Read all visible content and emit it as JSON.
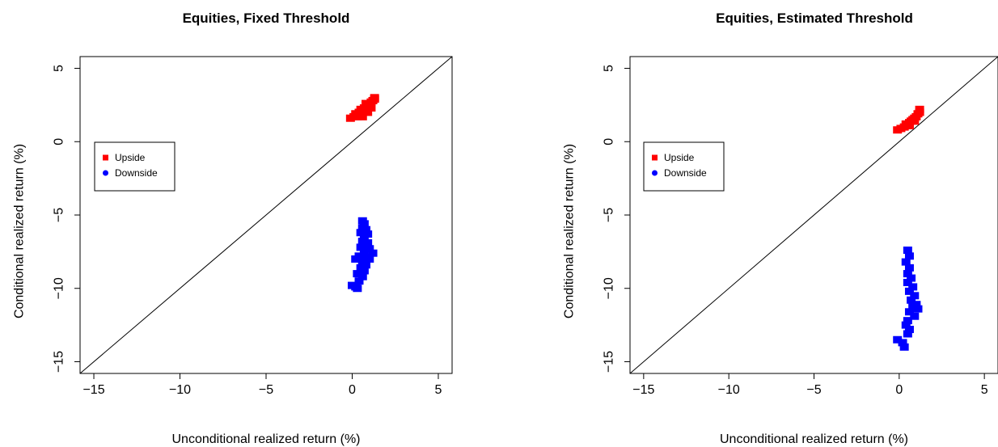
{
  "chart_data": [
    {
      "type": "scatter",
      "title": "Equities, Fixed Threshold",
      "xlabel": "Unconditional realized return (%)",
      "ylabel": "Conditional realized return (%)",
      "xlim": [
        -15.8,
        5.8
      ],
      "ylim": [
        -15.8,
        5.8
      ],
      "xticks": [
        -15,
        -10,
        -5,
        0,
        5
      ],
      "yticks": [
        -15,
        -10,
        -5,
        0,
        5
      ],
      "xtick_labels": [
        "−15",
        "−10",
        "−5",
        "0",
        "5"
      ],
      "ytick_labels": [
        "−15",
        "−10",
        "−5",
        "0",
        "5"
      ],
      "reference_line": "y = x",
      "legend": {
        "placement": "left-middle",
        "entries": [
          "Upside",
          "Downside"
        ]
      },
      "series": [
        {
          "name": "Upside",
          "color": "#ff0000",
          "marker": "square",
          "points": [
            [
              -0.1,
              1.6
            ],
            [
              0.1,
              1.7
            ],
            [
              0.3,
              1.7
            ],
            [
              0.5,
              1.8
            ],
            [
              0.2,
              1.9
            ],
            [
              0.4,
              2.0
            ],
            [
              0.6,
              2.0
            ],
            [
              0.8,
              2.1
            ],
            [
              0.5,
              2.2
            ],
            [
              0.7,
              2.3
            ],
            [
              0.9,
              2.4
            ],
            [
              1.0,
              2.5
            ],
            [
              0.8,
              2.6
            ],
            [
              1.1,
              2.7
            ],
            [
              1.2,
              2.8
            ],
            [
              1.3,
              2.9
            ],
            [
              1.3,
              3.0
            ],
            [
              0.6,
              1.7
            ],
            [
              0.9,
              2.0
            ],
            [
              1.1,
              2.3
            ]
          ]
        },
        {
          "name": "Downside",
          "color": "#0000ff",
          "marker": "square",
          "points": [
            [
              0.6,
              -5.4
            ],
            [
              0.7,
              -5.6
            ],
            [
              0.6,
              -5.9
            ],
            [
              0.8,
              -6.0
            ],
            [
              0.5,
              -6.2
            ],
            [
              0.9,
              -6.3
            ],
            [
              0.7,
              -6.6
            ],
            [
              0.6,
              -6.8
            ],
            [
              0.9,
              -6.9
            ],
            [
              0.8,
              -7.1
            ],
            [
              0.5,
              -7.2
            ],
            [
              1.0,
              -7.3
            ],
            [
              0.7,
              -7.5
            ],
            [
              1.2,
              -7.6
            ],
            [
              0.4,
              -7.8
            ],
            [
              0.9,
              -7.9
            ],
            [
              0.2,
              -8.0
            ],
            [
              0.6,
              -8.2
            ],
            [
              0.8,
              -8.4
            ],
            [
              0.5,
              -8.6
            ],
            [
              0.7,
              -8.8
            ],
            [
              0.3,
              -9.0
            ],
            [
              0.6,
              -9.2
            ],
            [
              0.4,
              -9.5
            ],
            [
              0.0,
              -9.8
            ],
            [
              0.2,
              -9.9
            ],
            [
              0.3,
              -10.0
            ],
            [
              1.0,
              -8.0
            ]
          ]
        }
      ]
    },
    {
      "type": "scatter",
      "title": "Equities, Estimated Threshold",
      "xlabel": "Unconditional realized return (%)",
      "ylabel": "Conditional realized return (%)",
      "xlim": [
        -15.8,
        5.8
      ],
      "ylim": [
        -15.8,
        5.8
      ],
      "xticks": [
        -15,
        -10,
        -5,
        0,
        5
      ],
      "yticks": [
        -15,
        -10,
        -5,
        0,
        5
      ],
      "xtick_labels": [
        "−15",
        "−10",
        "−5",
        "0",
        "5"
      ],
      "ytick_labels": [
        "−15",
        "−10",
        "−5",
        "0",
        "5"
      ],
      "reference_line": "y = x",
      "legend": {
        "placement": "left-middle",
        "entries": [
          "Upside",
          "Downside"
        ]
      },
      "series": [
        {
          "name": "Upside",
          "color": "#ff0000",
          "marker": "square",
          "points": [
            [
              -0.1,
              0.8
            ],
            [
              0.1,
              0.9
            ],
            [
              0.3,
              1.0
            ],
            [
              0.5,
              1.1
            ],
            [
              0.4,
              1.2
            ],
            [
              0.6,
              1.3
            ],
            [
              0.7,
              1.4
            ],
            [
              0.8,
              1.5
            ],
            [
              0.9,
              1.6
            ],
            [
              1.0,
              1.7
            ],
            [
              1.1,
              1.9
            ],
            [
              1.2,
              2.0
            ],
            [
              1.2,
              2.2
            ],
            [
              0.6,
              1.1
            ],
            [
              0.9,
              1.4
            ]
          ]
        },
        {
          "name": "Downside",
          "color": "#0000ff",
          "marker": "square",
          "points": [
            [
              0.5,
              -7.4
            ],
            [
              0.6,
              -7.8
            ],
            [
              0.4,
              -8.2
            ],
            [
              0.6,
              -8.6
            ],
            [
              0.5,
              -9.0
            ],
            [
              0.7,
              -9.3
            ],
            [
              0.5,
              -9.6
            ],
            [
              0.8,
              -9.9
            ],
            [
              0.6,
              -10.2
            ],
            [
              0.9,
              -10.5
            ],
            [
              0.7,
              -10.8
            ],
            [
              1.0,
              -11.1
            ],
            [
              1.1,
              -11.4
            ],
            [
              0.6,
              -11.6
            ],
            [
              0.9,
              -11.9
            ],
            [
              0.5,
              -12.2
            ],
            [
              0.4,
              -12.5
            ],
            [
              0.6,
              -12.8
            ],
            [
              0.5,
              -13.1
            ],
            [
              -0.1,
              -13.5
            ],
            [
              0.2,
              -13.7
            ],
            [
              0.3,
              -14.0
            ],
            [
              0.8,
              -11.2
            ]
          ]
        }
      ]
    }
  ]
}
